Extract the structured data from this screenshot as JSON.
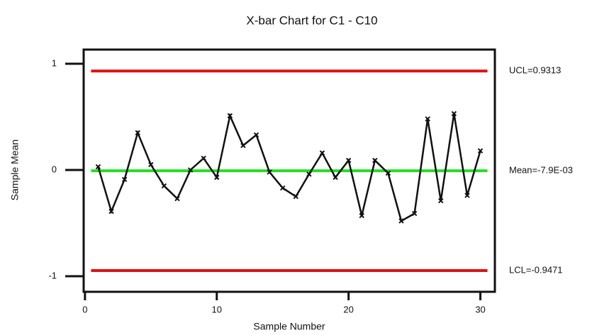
{
  "chart_data": {
    "type": "line",
    "title": "X-bar Chart for C1 - C10",
    "x_label": "Sample Number",
    "y_label": "Sample Mean",
    "x": [
      1,
      2,
      3,
      4,
      5,
      6,
      7,
      8,
      9,
      10,
      11,
      12,
      13,
      14,
      15,
      16,
      17,
      18,
      19,
      20,
      21,
      22,
      23,
      24,
      25,
      26,
      27,
      28,
      29,
      30
    ],
    "series": [
      {
        "name": "Sample Mean",
        "color": "#111111",
        "values": [
          0.03,
          -0.39,
          -0.09,
          0.35,
          0.05,
          -0.15,
          -0.27,
          0.0,
          0.11,
          -0.07,
          0.51,
          0.23,
          0.33,
          -0.02,
          -0.17,
          -0.25,
          -0.04,
          0.16,
          -0.07,
          0.09,
          -0.43,
          0.09,
          -0.03,
          -0.48,
          -0.41,
          0.48,
          -0.29,
          0.53,
          -0.24,
          0.18
        ]
      }
    ],
    "reference_lines": [
      {
        "label": "UCL=0.9313",
        "value": 0.9313,
        "color": "#e01010"
      },
      {
        "label": "Mean=-7.9E-03",
        "value": -0.0079,
        "color": "#22e022"
      },
      {
        "label": "LCL=-0.9471",
        "value": -0.9471,
        "color": "#e01010"
      }
    ],
    "xlim": [
      -0.1,
      31.1
    ],
    "ylim": [
      -1.147,
      1.133
    ],
    "xticks": [
      0,
      10,
      20,
      30
    ],
    "yticks": [
      -1,
      0,
      1
    ],
    "grid": false
  }
}
